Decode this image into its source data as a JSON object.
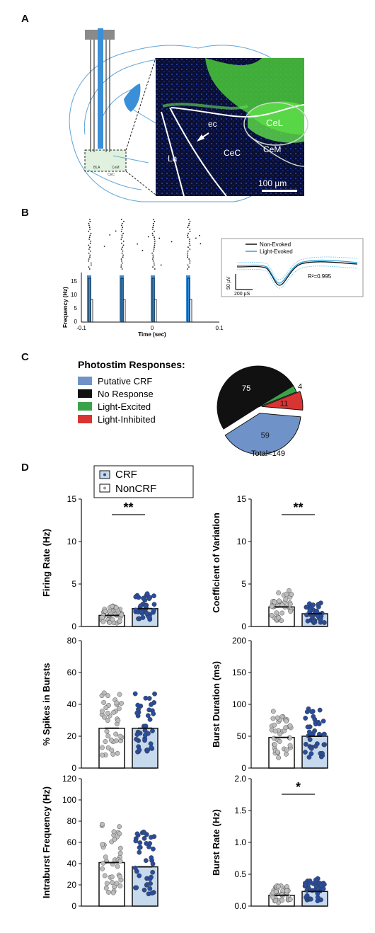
{
  "panels": {
    "a": {
      "letter": "A",
      "labels": {
        "bla": "BLA",
        "cem_small": "CeM",
        "cec_small": "CeC",
        "ec": "ec",
        "cec": "CeC",
        "cel": "CeL",
        "cem": "CeM",
        "la": "La",
        "scale": "100 µm"
      }
    },
    "b": {
      "letter": "B",
      "ylabel": "Frequency (Hz)",
      "xlabel": "Time (sec)",
      "yticks": [
        "0",
        "5",
        "10",
        "15"
      ],
      "xticks": [
        "-0.1",
        "0",
        "0.1"
      ],
      "inset": {
        "legend": [
          "Non-Evoked",
          "Light-Evoked"
        ],
        "r2": "R²=0.995",
        "scale_v": "50 µV",
        "scale_t": "200 µS"
      }
    },
    "c": {
      "letter": "C",
      "title": "Photostim Responses:",
      "total": "Total=149"
    },
    "d": {
      "letter": "D",
      "legend": [
        "CRF",
        "NonCRF"
      ]
    }
  },
  "colors": {
    "crf_fill": "#c7d9ec",
    "crf_dot": "#2a4d9a",
    "noncrf_dot": "#bdbdbd",
    "blue_stim": "#3a8fd8"
  },
  "chart_data": [
    {
      "type": "pie",
      "title": "Photostim Responses:",
      "categories": [
        "Putative CRF",
        "No Response",
        "Light-Excited",
        "Light-Inhibited"
      ],
      "values": [
        59,
        75,
        4,
        11
      ],
      "colors": [
        "#6f93c8",
        "#111111",
        "#3aa349",
        "#d93434"
      ],
      "annotation": "Total=149"
    },
    {
      "type": "bar",
      "ylabel": "Firing Rate (Hz)",
      "ylim": [
        0,
        15
      ],
      "yticks": [
        "0",
        "5",
        "10",
        "15"
      ],
      "categories": [
        "NonCRF",
        "CRF"
      ],
      "values": [
        1.3,
        2.1
      ],
      "significance": "**"
    },
    {
      "type": "bar",
      "ylabel": "Coefficient of  Variation",
      "ylim": [
        0,
        15
      ],
      "yticks": [
        "0",
        "5",
        "10",
        "15"
      ],
      "categories": [
        "NonCRF",
        "CRF"
      ],
      "values": [
        2.3,
        1.5
      ],
      "significance": "**"
    },
    {
      "type": "bar",
      "ylabel": "% Spikes in Bursts",
      "ylim": [
        0,
        80
      ],
      "yticks": [
        "0",
        "20",
        "40",
        "60",
        "80"
      ],
      "categories": [
        "NonCRF",
        "CRF"
      ],
      "values": [
        25,
        25
      ],
      "significance": ""
    },
    {
      "type": "bar",
      "ylabel": "Burst Duration (ms)",
      "ylim": [
        0,
        200
      ],
      "yticks": [
        "0",
        "50",
        "100",
        "150",
        "200"
      ],
      "categories": [
        "NonCRF",
        "CRF"
      ],
      "values": [
        48,
        50
      ],
      "significance": ""
    },
    {
      "type": "bar",
      "ylabel": "Intraburst  Frequency (Hz)",
      "ylim": [
        0,
        120
      ],
      "yticks": [
        "0",
        "20",
        "40",
        "60",
        "80",
        "100",
        "120"
      ],
      "categories": [
        "NonCRF",
        "CRF"
      ],
      "values": [
        41,
        37
      ],
      "significance": ""
    },
    {
      "type": "bar",
      "ylabel": "Burst Rate (Hz)",
      "ylim": [
        0,
        2
      ],
      "yticks": [
        "0.0",
        "0.5",
        "1.0",
        "1.5",
        "2.0"
      ],
      "categories": [
        "NonCRF",
        "CRF"
      ],
      "values": [
        0.17,
        0.23
      ],
      "significance": "*"
    }
  ]
}
